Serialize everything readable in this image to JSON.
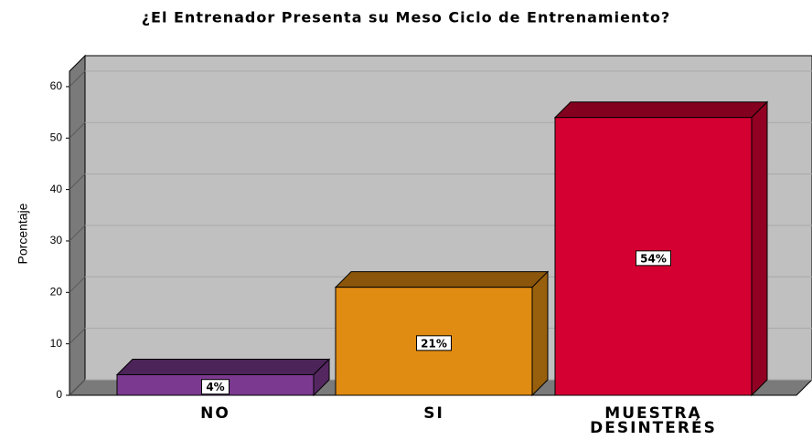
{
  "chart_data": {
    "type": "bar3d",
    "title": "¿El Entrenador Presenta su Meso Ciclo de Entrenamiento?",
    "y_label": "Porcentaje",
    "categories": [
      "NO",
      "SI",
      "MUESTRA DESINTERÉS"
    ],
    "values": [
      4,
      21,
      54
    ],
    "value_labels": [
      "4%",
      "21%",
      "54%"
    ],
    "colors": [
      "#7b3a8f",
      "#e08b12",
      "#d50032"
    ],
    "ylim": [
      0,
      63
    ],
    "yticks": [
      0,
      10,
      20,
      30,
      40,
      50,
      60
    ],
    "grid": true
  }
}
